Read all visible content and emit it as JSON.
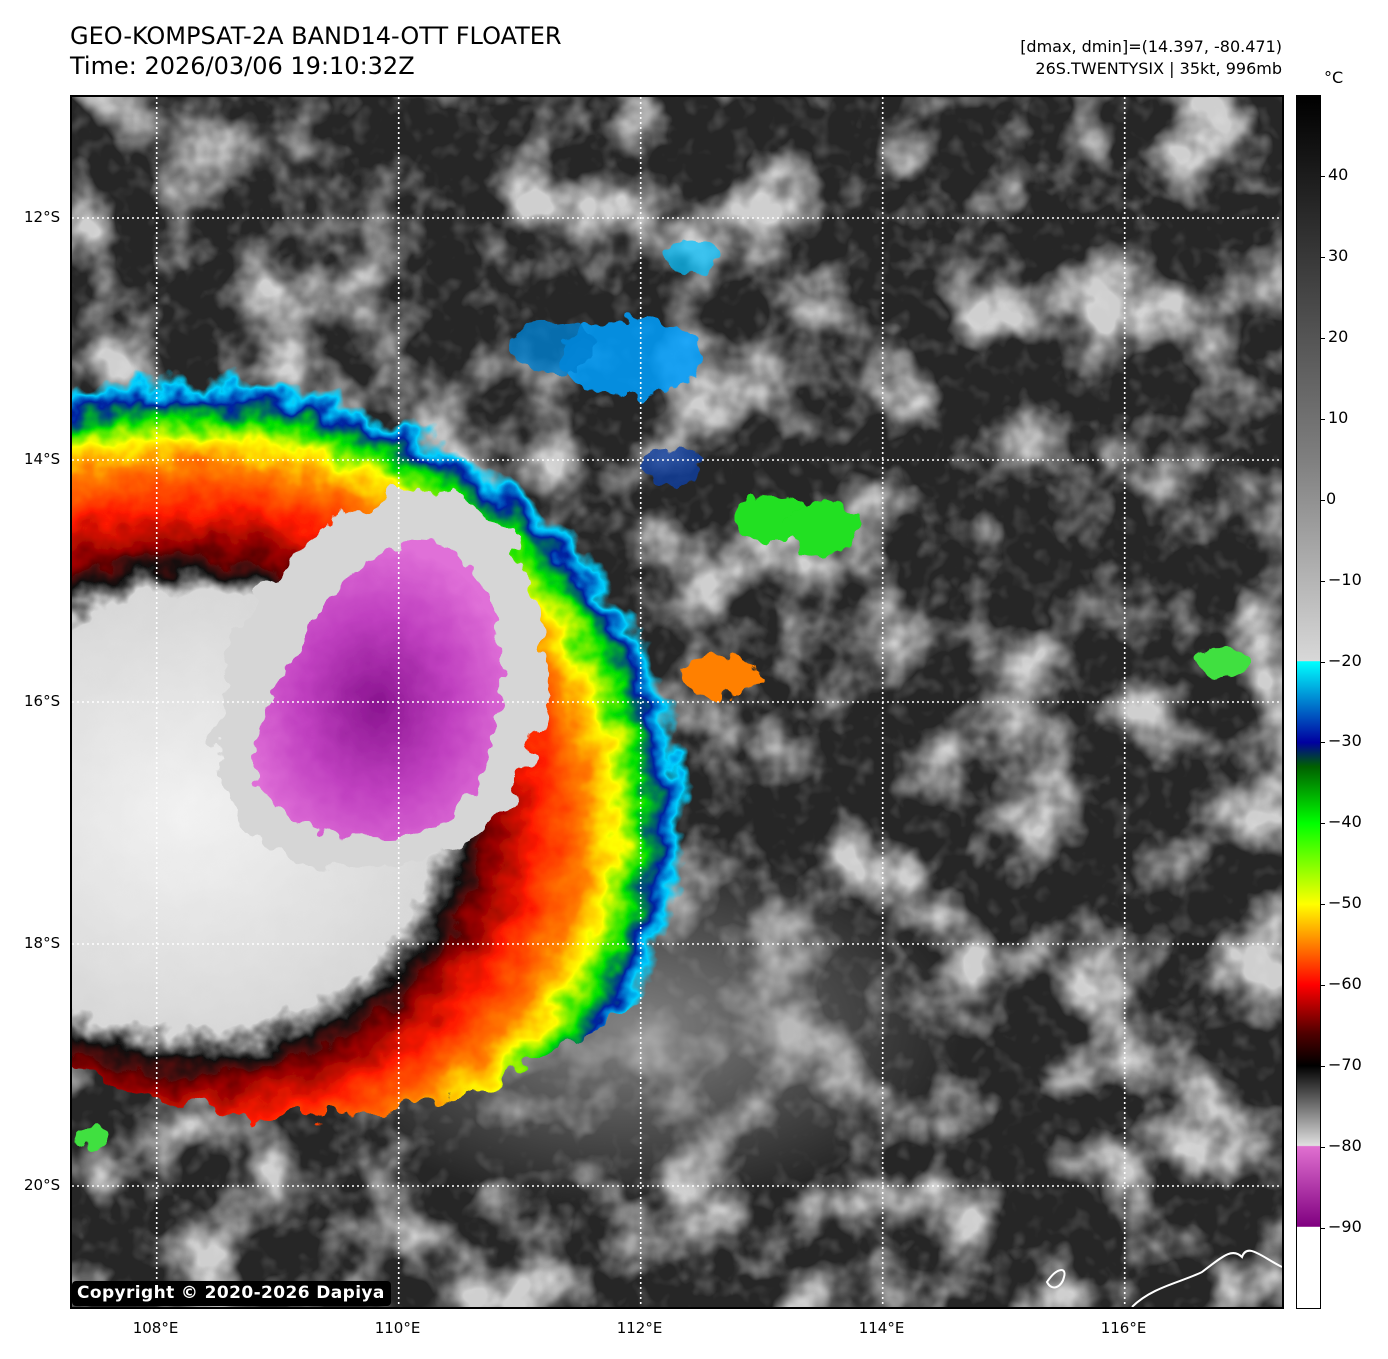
{
  "header": {
    "title_line1": "GEO-KOMPSAT-2A BAND14-OTT FLOATER",
    "title_line2": "Time: 2026/03/06 19:10:32Z",
    "range_text": "[dmax, dmin]=(14.397, -80.471)",
    "storm_text": "26S.TWENTYSIX | 35kt, 996mb"
  },
  "map": {
    "lon_labels": [
      "108°E",
      "110°E",
      "112°E",
      "114°E",
      "116°E"
    ],
    "lat_labels": [
      "12°S",
      "14°S",
      "16°S",
      "18°S",
      "20°S"
    ],
    "lon_range": [
      107.3,
      117.3
    ],
    "lat_range": [
      -11.0,
      -21.0
    ],
    "grid": "dotted white",
    "copyright": "Copyright © 2020-2026 Dapiya"
  },
  "colorbar": {
    "unit": "°C",
    "ticks": [
      "40",
      "30",
      "20",
      "10",
      "0",
      "−10",
      "−20",
      "−30",
      "−40",
      "−50",
      "−60",
      "−70",
      "−80",
      "−90"
    ],
    "tick_values": [
      40,
      30,
      20,
      10,
      0,
      -10,
      -20,
      -30,
      -40,
      -50,
      -60,
      -70,
      -80,
      -90
    ],
    "range": [
      -100,
      50
    ],
    "colors": {
      "warm_top": "#000000",
      "gray_mid": "#7f7f7f",
      "cyan": "#00ffff",
      "blue": "#0000a0",
      "green": "#00ff00",
      "yellow": "#ffff00",
      "red": "#ff0000",
      "dark_red": "#500000",
      "pink": "#e070d0",
      "purple": "#800080",
      "white": "#ffffff"
    }
  }
}
